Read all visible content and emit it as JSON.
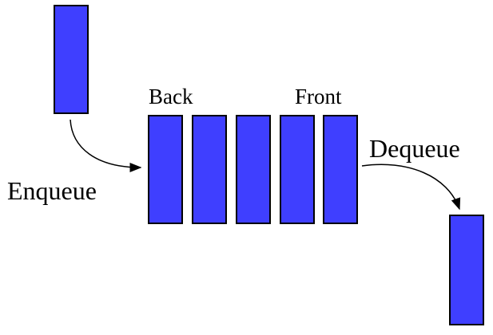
{
  "diagram": {
    "labels": {
      "back": "Back",
      "front": "Front",
      "enqueue": "Enqueue",
      "dequeue": "Dequeue"
    },
    "queue_item_count": 5,
    "colors": {
      "block_fill": "#3f3fff",
      "block_stroke": "#000000",
      "arrow": "#000000",
      "text": "#000000",
      "background": "#ffffff"
    }
  }
}
